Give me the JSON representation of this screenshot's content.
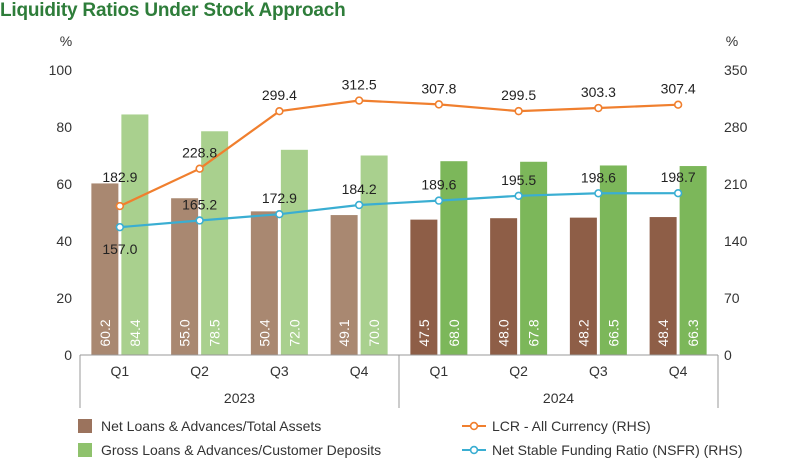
{
  "chart_data": {
    "type": "bar",
    "title": "Liquidity Ratios Under Stock Approach",
    "left_unit": "%",
    "right_unit": "%",
    "categories": [
      "Q1",
      "Q2",
      "Q3",
      "Q4",
      "Q1",
      "Q2",
      "Q3",
      "Q4"
    ],
    "groups": [
      {
        "label": "2023",
        "count": 4
      },
      {
        "label": "2024",
        "count": 4
      }
    ],
    "left_axis": {
      "min": 0,
      "max": 100,
      "ticks": [
        "0",
        "20",
        "40",
        "60",
        "80",
        "100"
      ]
    },
    "right_axis": {
      "min": 0,
      "max": 350,
      "ticks": [
        "0",
        "70",
        "140",
        "210",
        "280",
        "350"
      ]
    },
    "bar_series": [
      {
        "name": "Net Loans & Advances/Total Assets",
        "axis": "left",
        "values": [
          60.2,
          55.0,
          50.4,
          49.1,
          47.5,
          48.0,
          48.2,
          48.4
        ],
        "labels": [
          "60.2",
          "55.0",
          "50.4",
          "49.1",
          "47.5",
          "48.0",
          "48.2",
          "48.4"
        ],
        "colors": [
          "#a98871",
          "#a98871",
          "#a98871",
          "#a98871",
          "#8e5e47",
          "#8e5e47",
          "#8e5e47",
          "#8e5e47"
        ],
        "legend_color": "#9b735d"
      },
      {
        "name": "Gross Loans & Advances/Customer Deposits",
        "axis": "left",
        "values": [
          84.4,
          78.5,
          72.0,
          70.0,
          68.0,
          67.8,
          66.5,
          66.3
        ],
        "labels": [
          "84.4",
          "78.5",
          "72.0",
          "70.0",
          "68.0",
          "67.8",
          "66.5",
          "66.3"
        ],
        "colors": [
          "#a9d08e",
          "#a9d08e",
          "#a9d08e",
          "#a9d08e",
          "#7cb75a",
          "#7cb75a",
          "#7cb75a",
          "#7cb75a"
        ],
        "legend_color": "#8fc26d"
      }
    ],
    "line_series": [
      {
        "name": "LCR - All Currency (RHS)",
        "axis": "right",
        "color": "#f07f2e",
        "values": [
          182.9,
          228.8,
          299.4,
          312.5,
          307.8,
          299.5,
          303.3,
          307.4
        ],
        "labels": [
          "182.9",
          "228.8",
          "299.4",
          "312.5",
          "307.8",
          "299.5",
          "303.3",
          "307.4"
        ]
      },
      {
        "name": "Net Stable Funding Ratio (NSFR) (RHS)",
        "axis": "right",
        "color": "#3aaed2",
        "values": [
          157.0,
          165.2,
          172.9,
          184.2,
          189.6,
          195.5,
          198.6,
          198.7
        ],
        "labels": [
          "157.0",
          "165.2",
          "172.9",
          "184.2",
          "189.6",
          "195.5",
          "198.6",
          "198.7"
        ]
      }
    ],
    "legend_placement": "bottom",
    "grid": false
  }
}
